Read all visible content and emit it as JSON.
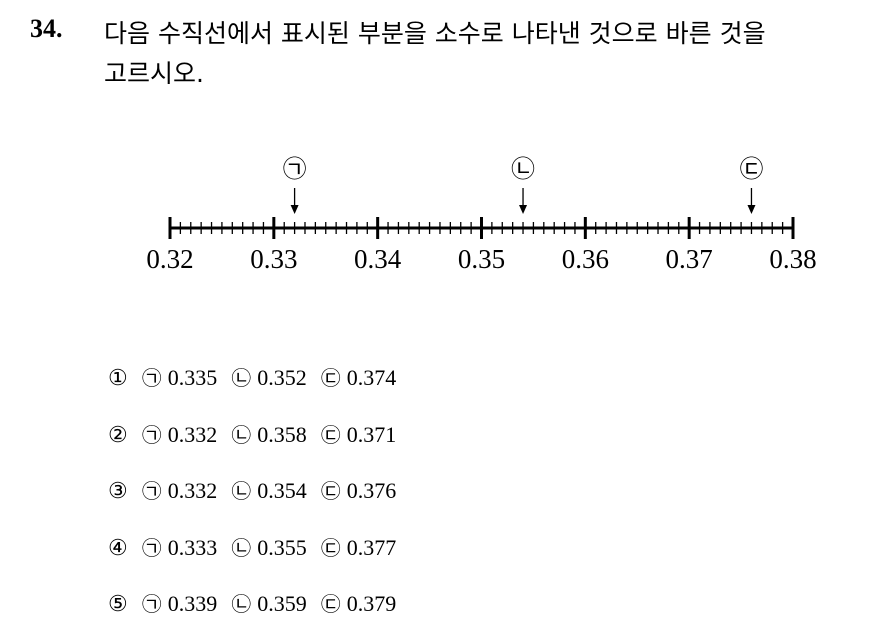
{
  "question": {
    "number": "34.",
    "text_lines": [
      "다음 수직선에서 표시된 부분을 소수로 나타낸 것으로 바른 것을",
      "고르시오."
    ]
  },
  "number_line": {
    "xlim": [
      0.32,
      0.38
    ],
    "ticks": [
      0.32,
      0.33,
      0.34,
      0.35,
      0.36,
      0.37,
      0.38
    ],
    "markers": [
      {
        "label": "㉠",
        "value": 0.332
      },
      {
        "label": "㉡",
        "value": 0.354
      },
      {
        "label": "㉢",
        "value": 0.376
      }
    ]
  },
  "options": [
    {
      "number": "①",
      "items": [
        {
          "symbol": "㉠",
          "value": "0.335"
        },
        {
          "symbol": "㉡",
          "value": "0.352"
        },
        {
          "symbol": "㉢",
          "value": "0.374"
        }
      ]
    },
    {
      "number": "②",
      "items": [
        {
          "symbol": "㉠",
          "value": "0.332"
        },
        {
          "symbol": "㉡",
          "value": "0.358"
        },
        {
          "symbol": "㉢",
          "value": "0.371"
        }
      ]
    },
    {
      "number": "③",
      "items": [
        {
          "symbol": "㉠",
          "value": "0.332"
        },
        {
          "symbol": "㉡",
          "value": "0.354"
        },
        {
          "symbol": "㉢",
          "value": "0.376"
        }
      ]
    },
    {
      "number": "④",
      "items": [
        {
          "symbol": "㉠",
          "value": "0.333"
        },
        {
          "symbol": "㉡",
          "value": "0.355"
        },
        {
          "symbol": "㉢",
          "value": "0.377"
        }
      ]
    },
    {
      "number": "⑤",
      "items": [
        {
          "symbol": "㉠",
          "value": "0.339"
        },
        {
          "symbol": "㉡",
          "value": "0.359"
        },
        {
          "symbol": "㉢",
          "value": "0.379"
        }
      ]
    }
  ]
}
